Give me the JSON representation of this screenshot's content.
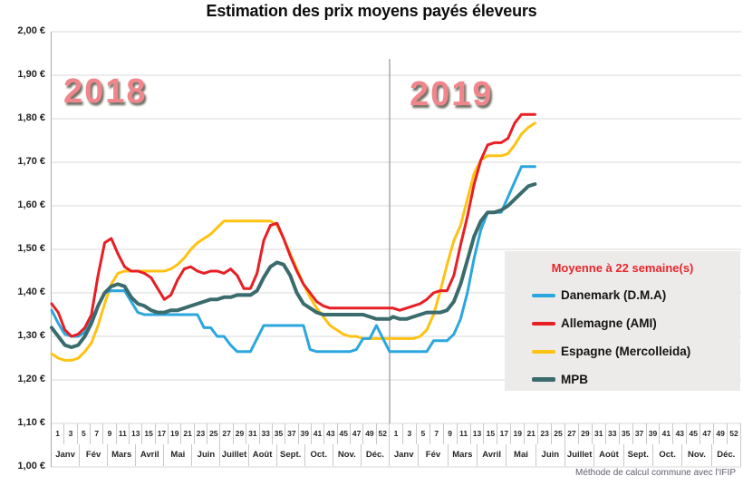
{
  "title": "Estimation des prix moyens payés éleveurs",
  "footer": "Méthode de calcul commune avec l'IFIP",
  "year_labels": [
    "2018",
    "2019"
  ],
  "colors": {
    "grid": "#dadada",
    "axis": "#ababab",
    "divider": "#9b9b9b",
    "year_label": "#f0868b",
    "legend_background": "#edebe9",
    "legend_title": "#e8262d",
    "danemark_blue": "#2ba6de",
    "allemagne_red": "#e81e25",
    "espagne_yellow": "#ffc213",
    "mpb_teal": "#3a6b6d"
  },
  "y_axis": {
    "labels": [
      "2,00 €",
      "1,90 €",
      "1,80 €",
      "1,70 €",
      "1,60 €",
      "1,50 €",
      "1,40 €",
      "1,30 €",
      "1,20 €",
      "1,10 €",
      "1,00 €"
    ],
    "y_step": 0.1
  },
  "x_axis": {
    "week_labels": [
      "1",
      "3",
      "5",
      "7",
      "9",
      "11",
      "13",
      "15",
      "17",
      "19",
      "21",
      "23",
      "25",
      "27",
      "29",
      "31",
      "33",
      "35",
      "37",
      "39",
      "41",
      "43",
      "45",
      "47",
      "49",
      "52"
    ],
    "months": [
      "Janv",
      "Fév",
      "Mars",
      "Avril",
      "Mai",
      "Juin",
      "Juillet",
      "Août",
      "Sept.",
      "Oct.",
      "Nov.",
      "Déc."
    ]
  },
  "legend": {
    "title": "Moyenne à  22 semaine(s)",
    "items": [
      {
        "label": "Danemark (D.M.A)",
        "color": "#2ba6de"
      },
      {
        "label": "Allemagne (AMI)",
        "color": "#e81e25"
      },
      {
        "label": "Espagne (Mercolleida)",
        "color": "#ffc213"
      },
      {
        "label": "MPB",
        "color": "#3a6b6d"
      }
    ]
  },
  "chart_data": {
    "type": "line",
    "x_unit": "week",
    "years": [
      {
        "year": 2018,
        "weeks": 52
      },
      {
        "year": 2019,
        "weeks": 22
      }
    ],
    "ylim": [
      1.0,
      2.0
    ],
    "grid": true,
    "legend_position": "right-center",
    "draw_order": [
      2,
      0,
      1,
      3
    ],
    "series": [
      {
        "id": "danemark",
        "name": "Danemark (D.M.A)",
        "color": "#2ba6de",
        "width": 3,
        "values_2018": [
          1.36,
          1.33,
          1.305,
          1.3,
          1.3,
          1.31,
          1.34,
          1.37,
          1.4,
          1.405,
          1.405,
          1.405,
          1.38,
          1.355,
          1.35,
          1.35,
          1.35,
          1.35,
          1.35,
          1.35,
          1.35,
          1.35,
          1.35,
          1.32,
          1.32,
          1.3,
          1.3,
          1.28,
          1.265,
          1.265,
          1.265,
          1.295,
          1.325,
          1.325,
          1.325,
          1.325,
          1.325,
          1.325,
          1.325,
          1.27,
          1.265,
          1.265,
          1.265,
          1.265,
          1.265,
          1.265,
          1.27,
          1.295,
          1.295,
          1.325,
          1.295,
          1.265
        ],
        "values_2019": [
          1.265,
          1.265,
          1.265,
          1.265,
          1.265,
          1.265,
          1.29,
          1.29,
          1.29,
          1.305,
          1.34,
          1.4,
          1.48,
          1.545,
          1.585,
          1.585,
          1.585,
          1.62,
          1.655,
          1.69,
          1.69,
          1.69
        ]
      },
      {
        "id": "allemagne",
        "name": "Allemagne (AMI)",
        "color": "#e81e25",
        "width": 3,
        "values_2018": [
          1.375,
          1.355,
          1.315,
          1.3,
          1.305,
          1.32,
          1.35,
          1.44,
          1.515,
          1.525,
          1.49,
          1.46,
          1.45,
          1.45,
          1.445,
          1.435,
          1.41,
          1.385,
          1.395,
          1.43,
          1.455,
          1.46,
          1.45,
          1.445,
          1.45,
          1.45,
          1.445,
          1.455,
          1.44,
          1.41,
          1.41,
          1.445,
          1.52,
          1.555,
          1.56,
          1.525,
          1.485,
          1.45,
          1.42,
          1.4,
          1.38,
          1.37,
          1.365,
          1.365,
          1.365,
          1.365,
          1.365,
          1.365,
          1.365,
          1.365,
          1.365,
          1.365
        ],
        "values_2019": [
          1.365,
          1.36,
          1.365,
          1.37,
          1.375,
          1.385,
          1.4,
          1.405,
          1.405,
          1.44,
          1.51,
          1.575,
          1.65,
          1.705,
          1.74,
          1.745,
          1.745,
          1.755,
          1.79,
          1.81,
          1.81,
          1.81
        ]
      },
      {
        "id": "espagne",
        "name": "Espagne (Mercolleida)",
        "color": "#ffc213",
        "width": 3,
        "values_2018": [
          1.26,
          1.25,
          1.245,
          1.245,
          1.25,
          1.265,
          1.285,
          1.325,
          1.375,
          1.42,
          1.445,
          1.45,
          1.45,
          1.45,
          1.45,
          1.45,
          1.45,
          1.45,
          1.455,
          1.465,
          1.48,
          1.5,
          1.515,
          1.525,
          1.535,
          1.55,
          1.565,
          1.565,
          1.565,
          1.565,
          1.565,
          1.565,
          1.565,
          1.565,
          1.555,
          1.525,
          1.49,
          1.455,
          1.42,
          1.39,
          1.365,
          1.345,
          1.325,
          1.315,
          1.305,
          1.3,
          1.3,
          1.295,
          1.295,
          1.295,
          1.295,
          1.295
        ],
        "values_2019": [
          1.295,
          1.295,
          1.295,
          1.295,
          1.3,
          1.315,
          1.35,
          1.405,
          1.465,
          1.52,
          1.555,
          1.615,
          1.675,
          1.705,
          1.715,
          1.715,
          1.715,
          1.72,
          1.74,
          1.765,
          1.78,
          1.79
        ]
      },
      {
        "id": "mpb",
        "name": "MPB",
        "color": "#3a6b6d",
        "width": 4,
        "values_2018": [
          1.32,
          1.3,
          1.28,
          1.275,
          1.28,
          1.3,
          1.33,
          1.37,
          1.4,
          1.415,
          1.42,
          1.415,
          1.39,
          1.375,
          1.37,
          1.36,
          1.355,
          1.355,
          1.36,
          1.36,
          1.365,
          1.37,
          1.375,
          1.38,
          1.385,
          1.385,
          1.39,
          1.39,
          1.395,
          1.395,
          1.395,
          1.405,
          1.435,
          1.46,
          1.47,
          1.465,
          1.44,
          1.4,
          1.375,
          1.365,
          1.355,
          1.35,
          1.35,
          1.35,
          1.35,
          1.35,
          1.35,
          1.35,
          1.345,
          1.34,
          1.34,
          1.34
        ],
        "values_2019": [
          1.345,
          1.34,
          1.34,
          1.345,
          1.35,
          1.355,
          1.355,
          1.355,
          1.36,
          1.38,
          1.42,
          1.475,
          1.53,
          1.565,
          1.585,
          1.585,
          1.59,
          1.6,
          1.615,
          1.63,
          1.645,
          1.65
        ]
      }
    ]
  }
}
